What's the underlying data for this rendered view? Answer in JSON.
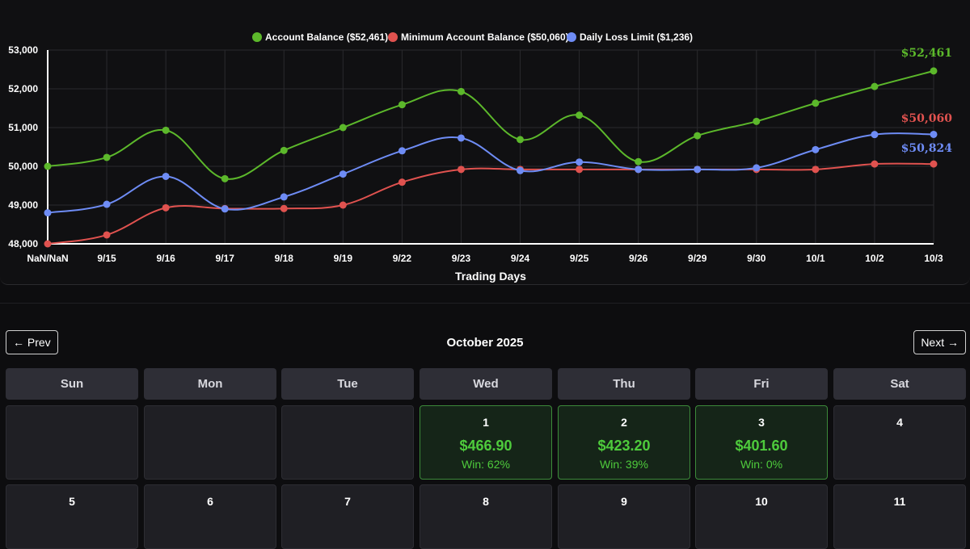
{
  "chart_data": {
    "type": "line",
    "xlabel": "Trading Days",
    "categories": [
      "NaN/NaN",
      "9/15",
      "9/16",
      "9/17",
      "9/18",
      "9/19",
      "9/22",
      "9/23",
      "9/24",
      "9/25",
      "9/26",
      "9/29",
      "9/30",
      "10/1",
      "10/2",
      "10/3"
    ],
    "ylim": [
      48000,
      53000
    ],
    "yticks": [
      48000,
      49000,
      50000,
      51000,
      52000,
      53000
    ],
    "ytick_labels": [
      "48,000",
      "49,000",
      "50,000",
      "51,000",
      "52,000",
      "53,000"
    ],
    "grid": true,
    "legend_position": "top-center",
    "series": [
      {
        "name": "Account Balance ($52,461)",
        "color": "#5cb82b",
        "end_label": "$52,461",
        "values": [
          50000,
          50230,
          50930,
          49680,
          50410,
          51000,
          51590,
          51930,
          50690,
          51320,
          50120,
          50790,
          51160,
          51630,
          52060,
          52461
        ]
      },
      {
        "name": "Minimum Account Balance ($50,060)",
        "color": "#e0524f",
        "end_label": "$50,060",
        "values": [
          48000,
          48230,
          48930,
          48910,
          48910,
          49000,
          49590,
          49920,
          49920,
          49920,
          49920,
          49920,
          49920,
          49920,
          50060,
          50060
        ]
      },
      {
        "name": "Daily Loss Limit ($1,236)",
        "color": "#6e8cf5",
        "end_label": "$50,824",
        "values": [
          48800,
          49020,
          49740,
          48900,
          49210,
          49800,
          50400,
          50730,
          49890,
          50110,
          49920,
          49920,
          49960,
          50430,
          50820,
          50824
        ]
      }
    ]
  },
  "calendar": {
    "prev_label": "← Prev",
    "next_label": "Next →",
    "month_title": "October 2025",
    "day_headers": [
      "Sun",
      "Mon",
      "Tue",
      "Wed",
      "Thu",
      "Fri",
      "Sat"
    ],
    "rows": [
      [
        {
          "day": "",
          "pnl": "",
          "win": ""
        },
        {
          "day": "",
          "pnl": "",
          "win": ""
        },
        {
          "day": "",
          "pnl": "",
          "win": ""
        },
        {
          "day": "1",
          "pnl": "$466.90",
          "win": "Win: 62%"
        },
        {
          "day": "2",
          "pnl": "$423.20",
          "win": "Win: 39%"
        },
        {
          "day": "3",
          "pnl": "$401.60",
          "win": "Win: 0%"
        },
        {
          "day": "4",
          "pnl": "",
          "win": ""
        }
      ],
      [
        {
          "day": "5",
          "pnl": "",
          "win": ""
        },
        {
          "day": "6",
          "pnl": "",
          "win": ""
        },
        {
          "day": "7",
          "pnl": "",
          "win": ""
        },
        {
          "day": "8",
          "pnl": "",
          "win": ""
        },
        {
          "day": "9",
          "pnl": "",
          "win": ""
        },
        {
          "day": "10",
          "pnl": "",
          "win": ""
        },
        {
          "day": "11",
          "pnl": "",
          "win": ""
        }
      ]
    ]
  }
}
